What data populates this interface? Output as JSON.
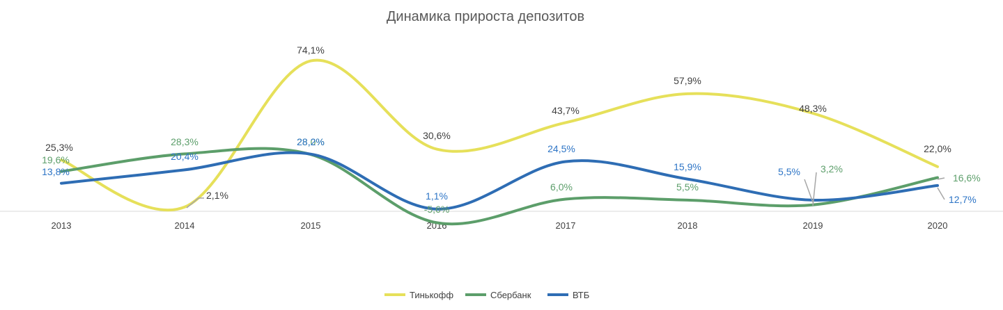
{
  "chart_data": {
    "type": "line",
    "title": "Динамика прироста депозитов",
    "categories": [
      "2013",
      "2014",
      "2015",
      "2016",
      "2017",
      "2018",
      "2019",
      "2020"
    ],
    "series": [
      {
        "name": "Тинькофф",
        "color": "#E6E05A",
        "values": [
          25.3,
          2.1,
          74.1,
          30.6,
          43.7,
          57.9,
          48.3,
          22.0
        ],
        "labels": [
          "25,3%",
          "2,1%",
          "74,1%",
          "30,6%",
          "43,7%",
          "57,9%",
          "48,3%",
          "22,0%"
        ],
        "label_color": "#404040"
      },
      {
        "name": "Сбербанк",
        "color": "#5C9E6A",
        "values": [
          19.6,
          28.3,
          28.0,
          -5.6,
          6.0,
          5.5,
          3.2,
          16.6
        ],
        "labels": [
          "19,6%",
          "28,3%",
          "28,0%",
          "-5,6%",
          "6,0%",
          "5,5%",
          "3,2%",
          "16,6%"
        ],
        "label_color": "#5C9E6A"
      },
      {
        "name": "ВТБ",
        "color": "#2E6DB4",
        "values": [
          13.8,
          20.4,
          28.2,
          1.1,
          24.5,
          15.9,
          5.5,
          12.7
        ],
        "labels": [
          "13,8%",
          "20,4%",
          "28,2%",
          "1,1%",
          "24,5%",
          "15,9%",
          "5,5%",
          "12,7%"
        ],
        "label_color": "#2E75C6"
      }
    ],
    "ylim": [
      -10,
      80
    ],
    "grid": false,
    "legend": "bottom"
  }
}
